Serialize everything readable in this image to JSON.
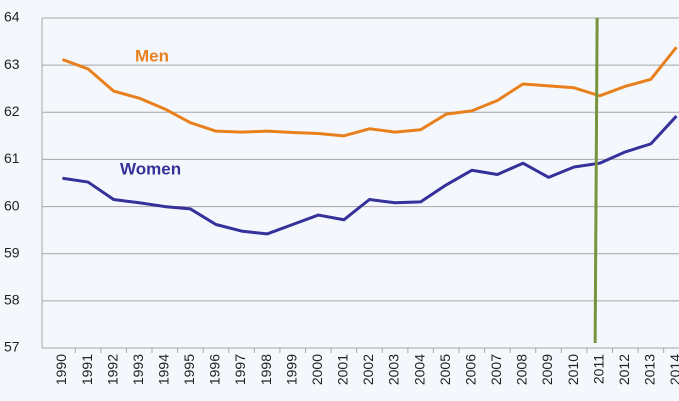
{
  "chart_data": {
    "type": "line",
    "x": [
      1990,
      1991,
      1992,
      1993,
      1994,
      1995,
      1996,
      1997,
      1998,
      1999,
      2000,
      2001,
      2002,
      2003,
      2004,
      2005,
      2006,
      2007,
      2008,
      2009,
      2010,
      2011,
      2012,
      2013,
      2014
    ],
    "xlim": [
      1989.2,
      2014.1
    ],
    "xticks": [
      1990,
      1991,
      1992,
      1993,
      1994,
      1995,
      1996,
      1997,
      1998,
      1999,
      2000,
      2001,
      2002,
      2003,
      2004,
      2005,
      2006,
      2007,
      2008,
      2009,
      2010,
      2011,
      2012,
      2013,
      2014
    ],
    "ylim": [
      57,
      64
    ],
    "yticks": [
      57,
      58,
      59,
      60,
      61,
      62,
      63,
      64
    ],
    "grid": true,
    "series": [
      {
        "name": "Men",
        "color": "#e8801e",
        "values": [
          63.12,
          62.92,
          62.45,
          62.3,
          62.07,
          61.78,
          61.6,
          61.58,
          61.6,
          61.57,
          61.55,
          61.5,
          61.65,
          61.58,
          61.63,
          61.96,
          62.03,
          62.25,
          62.6,
          62.56,
          62.52,
          62.35,
          62.55,
          62.7,
          63.38
        ]
      },
      {
        "name": "Women",
        "color": "#35309a",
        "values": [
          60.6,
          60.52,
          60.15,
          60.08,
          60.0,
          59.95,
          59.62,
          59.48,
          59.42,
          59.62,
          59.82,
          59.72,
          60.15,
          60.08,
          60.1,
          60.46,
          60.77,
          60.68,
          60.92,
          60.62,
          60.84,
          60.92,
          61.16,
          61.33,
          61.92
        ]
      }
    ],
    "vline": {
      "x": 2010.9,
      "color": "#77933c"
    }
  }
}
